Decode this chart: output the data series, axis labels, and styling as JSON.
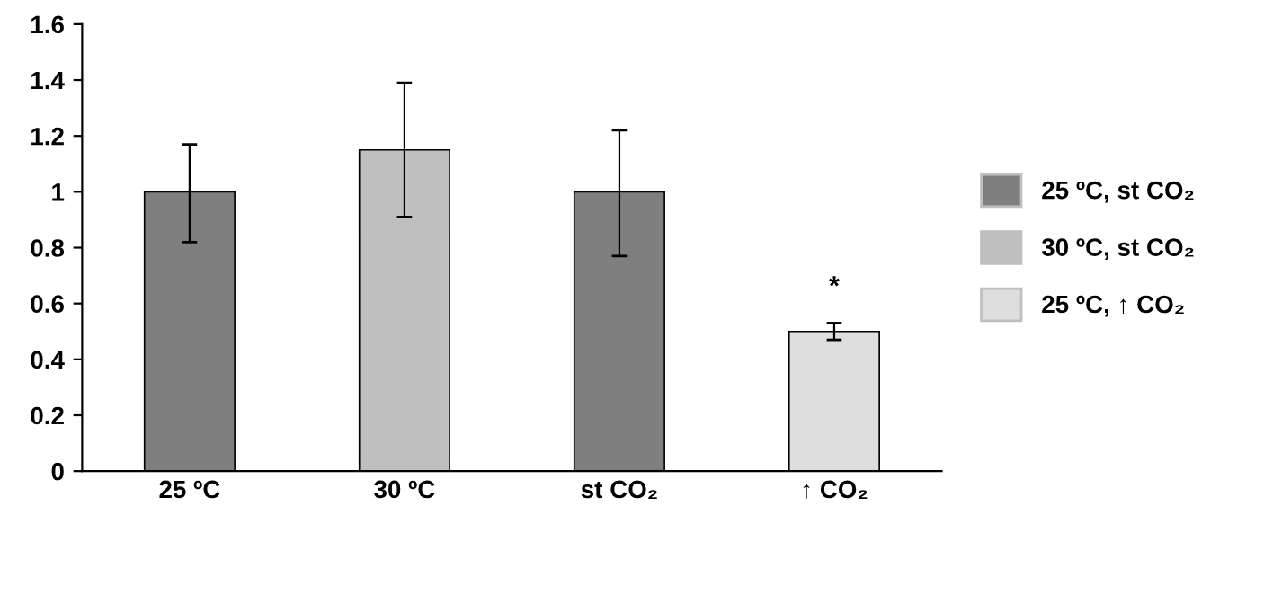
{
  "chart_data": {
    "type": "bar",
    "categories": [
      "25 ºC",
      "30 ºC",
      "st CO₂",
      "↑ CO₂"
    ],
    "series": [
      {
        "name": "25 ºC, st CO₂",
        "color": "#7f7f7f",
        "values": [
          1.0,
          null,
          1.0,
          null
        ],
        "errors": [
          [
            0.82,
            1.17
          ],
          null,
          [
            0.77,
            1.22
          ],
          null
        ]
      },
      {
        "name": "30 ºC, st CO₂",
        "color": "#bfbfbf",
        "values": [
          null,
          1.15,
          null,
          null
        ],
        "errors": [
          null,
          [
            0.91,
            1.39
          ],
          null,
          null
        ]
      },
      {
        "name": "25 ºC, ↑ CO₂",
        "color": "#dedede",
        "values": [
          null,
          null,
          null,
          0.5
        ],
        "errors": [
          null,
          null,
          null,
          [
            0.47,
            0.53
          ]
        ]
      }
    ],
    "ylim": [
      0,
      1.6
    ],
    "yticks": [
      0,
      0.2,
      0.4,
      0.6,
      0.8,
      1,
      1.2,
      1.4,
      1.6
    ],
    "annotations": [
      "*"
    ],
    "grid": false,
    "legend": "right"
  }
}
